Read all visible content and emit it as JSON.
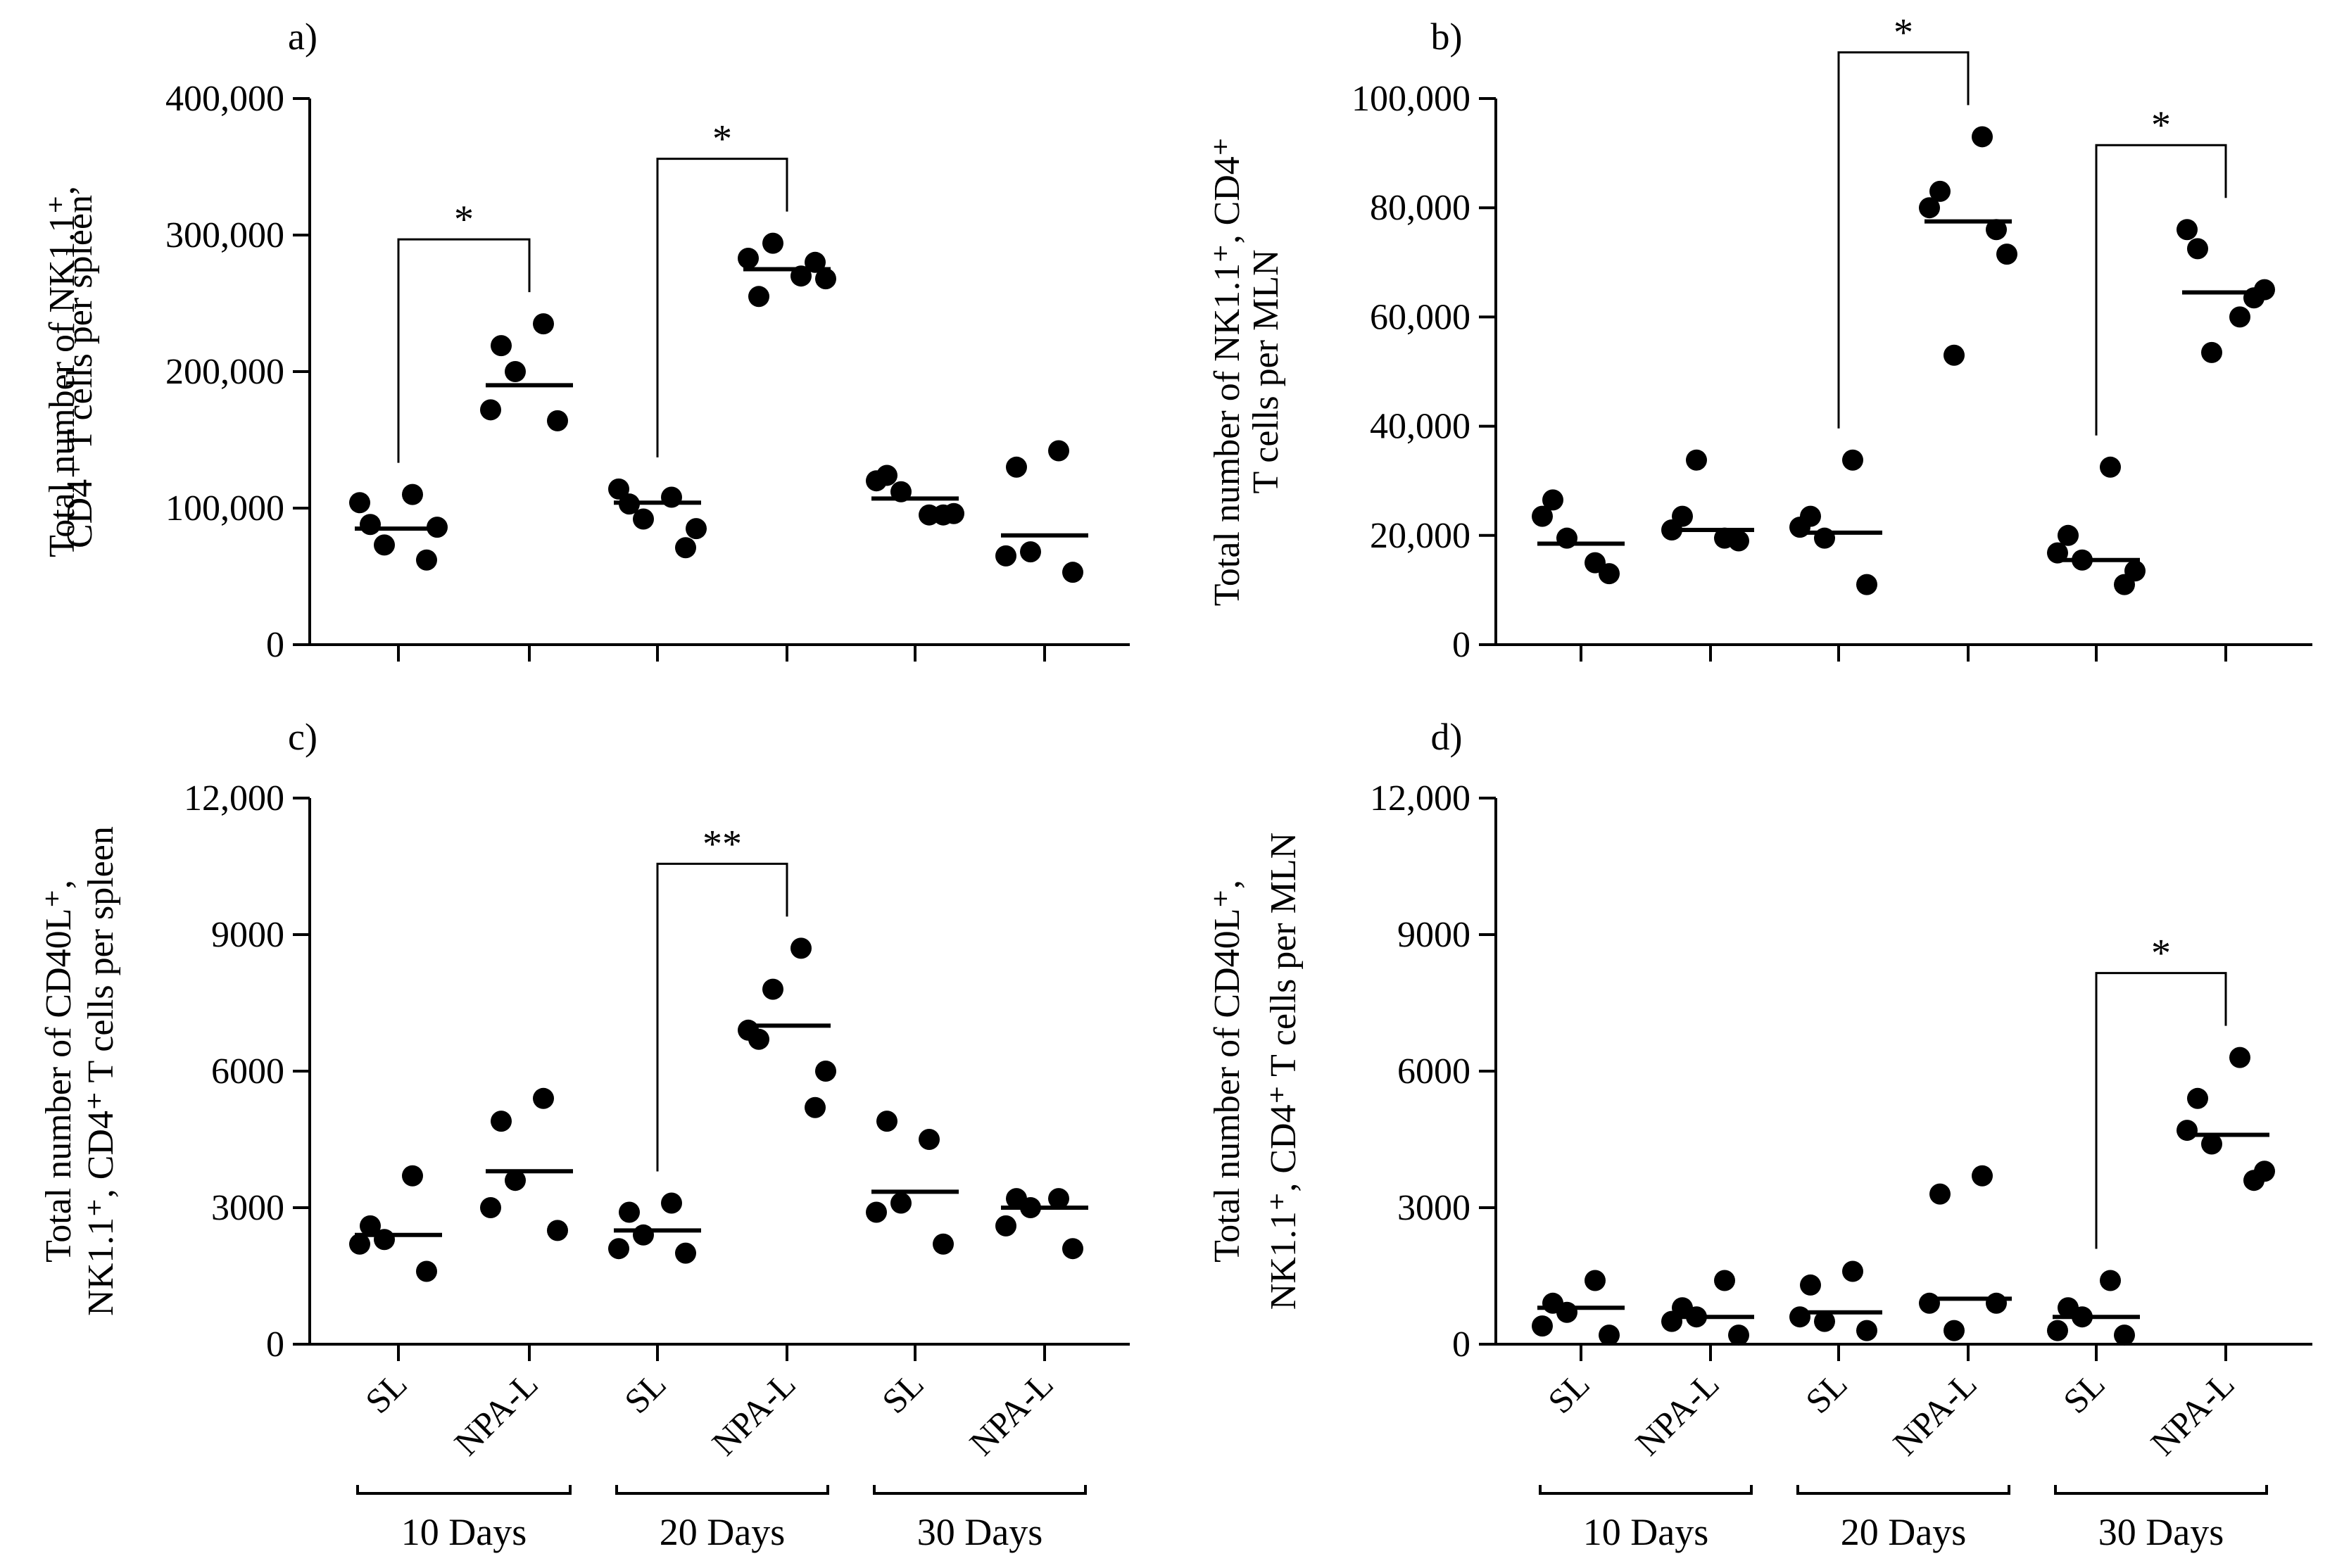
{
  "colors": {
    "ink": "#000000",
    "background": "#ffffff"
  },
  "categories": [
    "SL",
    "NPA-L",
    "SL",
    "NPA-L",
    "SL",
    "NPA-L"
  ],
  "groups": [
    "10 Days",
    "20 Days",
    "30 Days"
  ],
  "chart_data": [
    {
      "panel": "a)",
      "type": "scatter",
      "ylabel_lines": [
        "Total number of NK1.1⁺,",
        "CD4⁺ T cells per spleen"
      ],
      "ylim": [
        0,
        400000
      ],
      "yticks": [
        0,
        100000,
        200000,
        300000,
        400000
      ],
      "ytick_labels": [
        "0",
        "100,000",
        "200,000",
        "300,000",
        "400,000"
      ],
      "series": [
        {
          "category": "SL",
          "group": "10 Days",
          "points": [
            88000,
            62000,
            73000,
            110000,
            104000,
            86000
          ],
          "median": 85000
        },
        {
          "category": "NPA-L",
          "group": "10 Days",
          "points": [
            219000,
            164000,
            200000,
            235000,
            172000
          ],
          "median": 190000
        },
        {
          "category": "SL",
          "group": "20 Days",
          "points": [
            103000,
            71000,
            92000,
            108000,
            114000,
            85000
          ],
          "median": 104000
        },
        {
          "category": "NPA-L",
          "group": "20 Days",
          "points": [
            255000,
            280000,
            294000,
            270000,
            283000,
            268000
          ],
          "median": 275000
        },
        {
          "category": "SL",
          "group": "30 Days",
          "points": [
            124000,
            95000,
            112000,
            95000,
            120000,
            96000
          ],
          "median": 107000
        },
        {
          "category": "NPA-L",
          "group": "30 Days",
          "points": [
            130000,
            53000,
            68000,
            142000,
            65000
          ],
          "median": 80000
        }
      ],
      "significance": [
        {
          "from": 0,
          "to": 1,
          "label": "*"
        },
        {
          "from": 2,
          "to": 3,
          "label": "*"
        }
      ]
    },
    {
      "panel": "b)",
      "type": "scatter",
      "ylabel_lines": [
        "Total number of NK1.1⁺, CD4⁺",
        "T cells per MLN"
      ],
      "ylim": [
        0,
        100000
      ],
      "yticks": [
        0,
        20000,
        40000,
        60000,
        80000,
        100000
      ],
      "ytick_labels": [
        "0",
        "20,000",
        "40,000",
        "60,000",
        "80,000",
        "100,000"
      ],
      "series": [
        {
          "category": "SL",
          "group": "10 Days",
          "points": [
            26500,
            13000,
            19500,
            15000,
            23500
          ],
          "median": 18500
        },
        {
          "category": "NPA-L",
          "group": "10 Days",
          "points": [
            23500,
            19000,
            33800,
            19500,
            21000
          ],
          "median": 21000
        },
        {
          "category": "SL",
          "group": "20 Days",
          "points": [
            23500,
            11000,
            19500,
            33800,
            21500
          ],
          "median": 20500
        },
        {
          "category": "NPA-L",
          "group": "20 Days",
          "points": [
            83000,
            76000,
            53000,
            93000,
            80000,
            71500
          ],
          "median": 77500
        },
        {
          "category": "SL",
          "group": "30 Days",
          "points": [
            20000,
            11000,
            15500,
            32500,
            16800,
            13500
          ],
          "median": 15500
        },
        {
          "category": "NPA-L",
          "group": "30 Days",
          "points": [
            72500,
            63500,
            53500,
            60000,
            76000,
            65000
          ],
          "median": 64500
        }
      ],
      "significance": [
        {
          "from": 2,
          "to": 3,
          "label": "*"
        },
        {
          "from": 4,
          "to": 5,
          "label": "*"
        }
      ]
    },
    {
      "panel": "c)",
      "type": "scatter",
      "ylabel_lines": [
        "Total number of  CD40L⁺,",
        "NK1.1⁺, CD4⁺ T cells per spleen"
      ],
      "ylim": [
        0,
        12000
      ],
      "yticks": [
        0,
        3000,
        6000,
        9000,
        12000
      ],
      "ytick_labels": [
        "0",
        "3000",
        "6000",
        "9000",
        "12,000"
      ],
      "series": [
        {
          "category": "SL",
          "group": "10 Days",
          "points": [
            2600,
            1600,
            2300,
            3700,
            2200
          ],
          "median": 2400
        },
        {
          "category": "NPA-L",
          "group": "10 Days",
          "points": [
            4900,
            2500,
            3600,
            5400,
            3000
          ],
          "median": 3800
        },
        {
          "category": "SL",
          "group": "20 Days",
          "points": [
            2900,
            2000,
            2400,
            3100,
            2100
          ],
          "median": 2500
        },
        {
          "category": "NPA-L",
          "group": "20 Days",
          "points": [
            6700,
            5200,
            7800,
            8700,
            6900,
            6000
          ],
          "median": 7000
        },
        {
          "category": "SL",
          "group": "30 Days",
          "points": [
            4900,
            2200,
            3100,
            4500,
            2900
          ],
          "median": 3350
        },
        {
          "category": "NPA-L",
          "group": "30 Days",
          "points": [
            3200,
            2100,
            3000,
            3200,
            2600
          ],
          "median": 3000
        }
      ],
      "significance": [
        {
          "from": 2,
          "to": 3,
          "label": "**"
        }
      ]
    },
    {
      "panel": "d)",
      "type": "scatter",
      "ylabel_lines": [
        "Total number of  CD40L⁺,",
        "NK1.1⁺, CD4⁺ T cells per MLN"
      ],
      "ylim": [
        0,
        12000
      ],
      "yticks": [
        0,
        3000,
        6000,
        9000,
        12000
      ],
      "ytick_labels": [
        "0",
        "3000",
        "6000",
        "9000",
        "12,000"
      ],
      "series": [
        {
          "category": "SL",
          "group": "10 Days",
          "points": [
            900,
            200,
            700,
            1400,
            400
          ],
          "median": 800
        },
        {
          "category": "NPA-L",
          "group": "10 Days",
          "points": [
            800,
            200,
            600,
            1400,
            500
          ],
          "median": 600
        },
        {
          "category": "SL",
          "group": "20 Days",
          "points": [
            1300,
            300,
            500,
            1600,
            600
          ],
          "median": 700
        },
        {
          "category": "NPA-L",
          "group": "20 Days",
          "points": [
            3300,
            900,
            300,
            3700,
            900
          ],
          "median": 1000
        },
        {
          "category": "SL",
          "group": "30 Days",
          "points": [
            800,
            200,
            600,
            1400,
            300
          ],
          "median": 600
        },
        {
          "category": "NPA-L",
          "group": "30 Days",
          "points": [
            5400,
            3600,
            4400,
            6300,
            4700,
            3800
          ],
          "median": 4600
        }
      ],
      "significance": [
        {
          "from": 4,
          "to": 5,
          "label": "*"
        }
      ]
    }
  ]
}
